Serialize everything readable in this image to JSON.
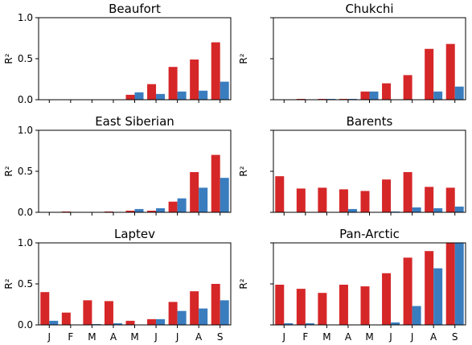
{
  "colors": {
    "series_a": "#d62728",
    "series_b": "#3a7dbf"
  },
  "chart_data": [
    {
      "type": "bar",
      "title": "Beaufort",
      "ylabel": "R²",
      "ylim": [
        0,
        1
      ],
      "yticks": [
        "0.0",
        "0.5",
        "1.0"
      ],
      "categories": [
        "J",
        "F",
        "M",
        "A",
        "M",
        "J",
        "J",
        "A",
        "S"
      ],
      "show_xticklabels": false,
      "show_yticklabels": true,
      "series": [
        {
          "values": [
            0,
            0,
            0,
            0,
            0.06,
            0.19,
            0.4,
            0.49,
            0.7
          ]
        },
        {
          "values": [
            0,
            0,
            0,
            0,
            0.09,
            0.07,
            0.1,
            0.11,
            0.22
          ]
        }
      ]
    },
    {
      "type": "bar",
      "title": "Chukchi",
      "ylabel": "R²",
      "ylim": [
        0,
        1
      ],
      "yticks": [],
      "categories": [
        "J",
        "F",
        "M",
        "A",
        "M",
        "J",
        "J",
        "A",
        "S"
      ],
      "show_xticklabels": false,
      "show_yticklabels": false,
      "series": [
        {
          "values": [
            0,
            0.01,
            0.01,
            0.01,
            0.1,
            0.2,
            0.3,
            0.62,
            0.68
          ]
        },
        {
          "values": [
            0,
            0,
            0.01,
            0.01,
            0.1,
            0,
            0,
            0.1,
            0.16
          ]
        }
      ]
    },
    {
      "type": "bar",
      "title": "East Siberian",
      "ylabel": "R²",
      "ylim": [
        0,
        1
      ],
      "yticks": [
        "0.0",
        "0.5",
        "1.0"
      ],
      "categories": [
        "J",
        "F",
        "M",
        "A",
        "M",
        "J",
        "J",
        "A",
        "S"
      ],
      "show_xticklabels": false,
      "show_yticklabels": true,
      "series": [
        {
          "values": [
            0,
            0.01,
            0,
            0.01,
            0.02,
            0.02,
            0.13,
            0.49,
            0.7
          ]
        },
        {
          "values": [
            0,
            0,
            0,
            0,
            0.04,
            0.05,
            0.17,
            0.3,
            0.42
          ]
        }
      ]
    },
    {
      "type": "bar",
      "title": "Barents",
      "ylabel": "R²",
      "ylim": [
        0,
        1
      ],
      "yticks": [],
      "categories": [
        "J",
        "F",
        "M",
        "A",
        "M",
        "J",
        "J",
        "A",
        "S"
      ],
      "show_xticklabels": false,
      "show_yticklabels": false,
      "series": [
        {
          "values": [
            0.44,
            0.29,
            0.3,
            0.28,
            0.26,
            0.4,
            0.49,
            0.31,
            0.3
          ]
        },
        {
          "values": [
            0,
            0,
            0,
            0.04,
            0,
            0.01,
            0.06,
            0.05,
            0.07
          ]
        }
      ]
    },
    {
      "type": "bar",
      "title": "Laptev",
      "ylabel": "R²",
      "ylim": [
        0,
        1
      ],
      "yticks": [
        "0.0",
        "0.5",
        "1.0"
      ],
      "categories": [
        "J",
        "F",
        "M",
        "A",
        "M",
        "J",
        "J",
        "A",
        "S"
      ],
      "show_xticklabels": true,
      "show_yticklabels": true,
      "series": [
        {
          "values": [
            0.4,
            0.15,
            0.3,
            0.29,
            0.05,
            0.07,
            0.28,
            0.41,
            0.5
          ]
        },
        {
          "values": [
            0.05,
            0,
            0.01,
            0.02,
            0,
            0.07,
            0.17,
            0.2,
            0.3
          ]
        }
      ]
    },
    {
      "type": "bar",
      "title": "Pan-Arctic",
      "ylabel": "R²",
      "ylim": [
        0,
        1
      ],
      "yticks": [],
      "categories": [
        "J",
        "F",
        "M",
        "A",
        "M",
        "J",
        "J",
        "A",
        "S"
      ],
      "show_xticklabels": true,
      "show_yticklabels": false,
      "series": [
        {
          "values": [
            0.49,
            0.44,
            0.39,
            0.49,
            0.47,
            0.63,
            0.82,
            0.9,
            1.0
          ]
        },
        {
          "values": [
            0.02,
            0.02,
            0,
            0,
            0,
            0.03,
            0.23,
            0.69,
            1.0
          ]
        }
      ]
    }
  ]
}
